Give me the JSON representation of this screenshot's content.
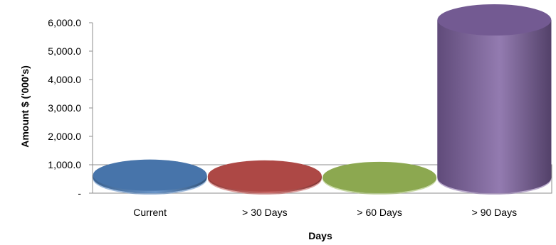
{
  "chart_data": {
    "type": "bar",
    "style": "3d-cylinder",
    "title": "",
    "xlabel": "Days",
    "ylabel": "Amount $ ('000's)",
    "categories": [
      "Current",
      "> 30 Days",
      "> 60 Days",
      "> 90 Days"
    ],
    "values": [
      90,
      60,
      5,
      6000
    ],
    "ylim": [
      0,
      6000
    ],
    "yticks": [
      0,
      1000,
      2000,
      3000,
      4000,
      5000,
      6000
    ],
    "ytick_labels": [
      "-",
      "1,000.0",
      "2,000.0",
      "3,000.0",
      "4,000.0",
      "5,000.0",
      "6,000.0"
    ],
    "grid": false,
    "legend": "none",
    "colors": [
      "#4F81BD",
      "#C0504D",
      "#9BBB59",
      "#8064A2"
    ]
  }
}
